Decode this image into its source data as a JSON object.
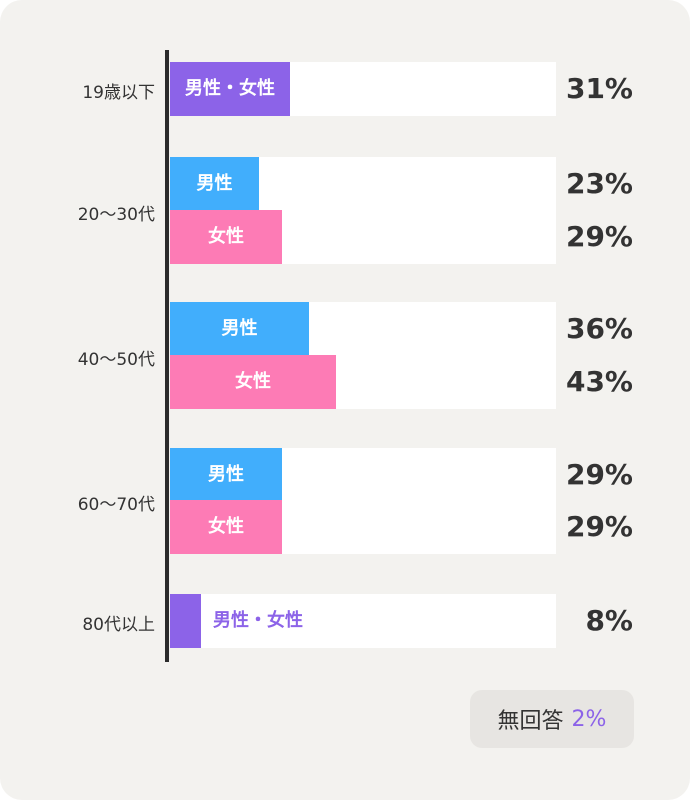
{
  "chart_data": {
    "type": "bar",
    "orientation": "horizontal",
    "xlim": [
      0,
      100
    ],
    "grid": false,
    "colors": {
      "male": "#41aefc",
      "female": "#fd7bb5",
      "combined": "#8c63e8"
    },
    "groups": [
      {
        "label": "19歳以下",
        "bars": [
          {
            "name": "男性・女性",
            "value": 31,
            "value_label": "31%",
            "kind": "combined"
          }
        ]
      },
      {
        "label": "20〜30代",
        "bars": [
          {
            "name": "男性",
            "value": 23,
            "value_label": "23%",
            "kind": "male"
          },
          {
            "name": "女性",
            "value": 29,
            "value_label": "29%",
            "kind": "female"
          }
        ]
      },
      {
        "label": "40〜50代",
        "bars": [
          {
            "name": "男性",
            "value": 36,
            "value_label": "36%",
            "kind": "male"
          },
          {
            "name": "女性",
            "value": 43,
            "value_label": "43%",
            "kind": "female"
          }
        ]
      },
      {
        "label": "60〜70代",
        "bars": [
          {
            "name": "男性",
            "value": 29,
            "value_label": "29%",
            "kind": "male"
          },
          {
            "name": "女性",
            "value": 29,
            "value_label": "29%",
            "kind": "female"
          }
        ]
      },
      {
        "label": "80代以上",
        "bars": [
          {
            "name": "男性・女性",
            "value": 8,
            "value_label": "8%",
            "kind": "combined"
          }
        ]
      }
    ]
  },
  "no_answer": {
    "label": "無回答",
    "value": "2%"
  }
}
